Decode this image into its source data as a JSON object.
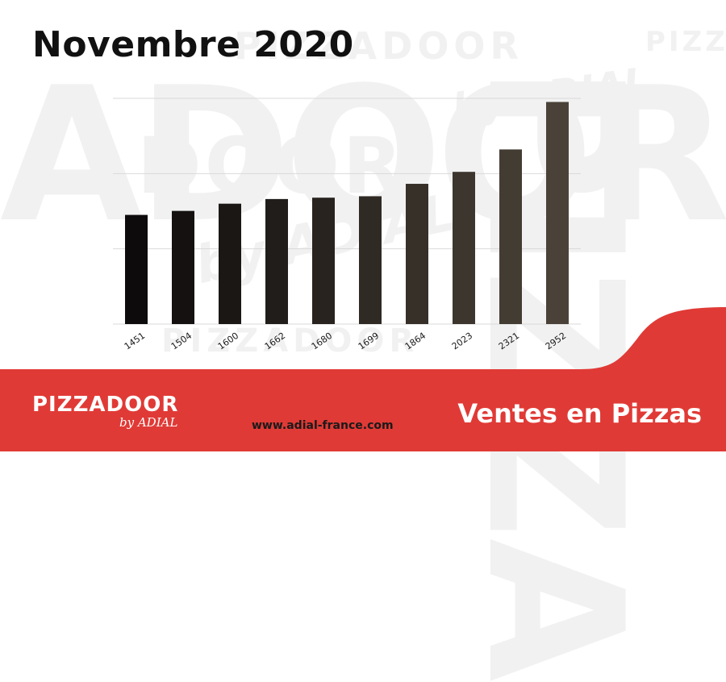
{
  "watermark": {
    "brand": "PIZZADOOR",
    "big": "ADOOR",
    "tail": "DOOR",
    "small": "PIZZADOOR",
    "corner": "PIZZ",
    "byline": "by ADIAL",
    "byline2": "by ADIAL",
    "vertical": "PIZZA",
    "lower": "PIZZADOOR"
  },
  "header": {
    "title": "Novembre 2020"
  },
  "colors": {
    "accent_red": "#e03a36",
    "bar_dark": "#0d0b0b",
    "bar_light": "#4a4238",
    "gridline": "#d9d9d9",
    "text_dark": "#111111"
  },
  "chart_data": {
    "type": "bar",
    "categories": [
      "1451",
      "1504",
      "1600",
      "1662",
      "1680",
      "1699",
      "1864",
      "2023",
      "2321",
      "2952"
    ],
    "values": [
      1451,
      1504,
      1600,
      1662,
      1680,
      1699,
      1864,
      2023,
      2321,
      2952
    ],
    "title": "Novembre 2020",
    "xlabel": "",
    "ylabel": "",
    "ylim": [
      0,
      3000
    ],
    "grid": true,
    "gridline_values": [
      1000,
      2000,
      3000
    ],
    "legend": "none",
    "bar_fill": "gradient from black (first) to dark taupe (last)"
  },
  "footer": {
    "logo_main": "PIZZADOOR",
    "logo_sub": "by ADIAL",
    "website": "www.adial-france.com",
    "tagline": "Ventes en Pizzas"
  }
}
